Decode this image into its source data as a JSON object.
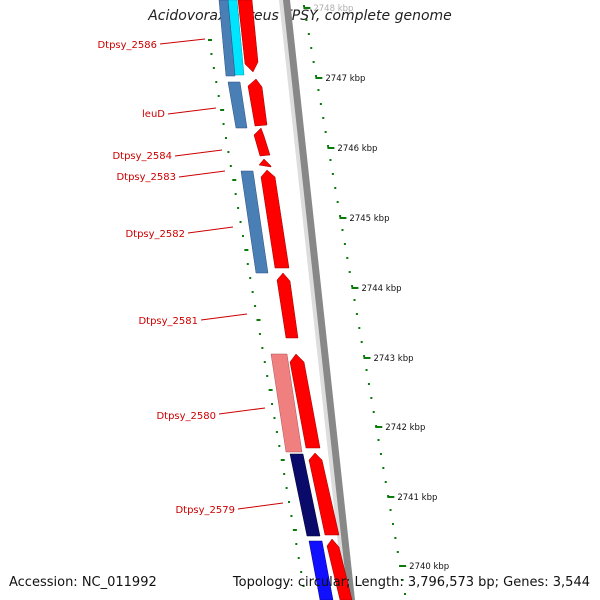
{
  "title": "Acidovorax ebreus TPSY, complete genome",
  "footer": {
    "accession": "Accession: NC_011992",
    "summary": "Topology: circular; Length: 3,796,573 bp; Genes: 3,544"
  },
  "ticks": [
    {
      "label": "2748 kbp",
      "faded": true
    },
    {
      "label": "2747 kbp"
    },
    {
      "label": "2746 kbp"
    },
    {
      "label": "2745 kbp"
    },
    {
      "label": "2744 kbp"
    },
    {
      "label": "2743 kbp"
    },
    {
      "label": "2742 kbp"
    },
    {
      "label": "2741 kbp"
    },
    {
      "label": "2740 kbp"
    }
  ],
  "gene_labels": [
    {
      "name": "Dtpsy_2586"
    },
    {
      "name": "leuD"
    },
    {
      "name": "Dtpsy_2584"
    },
    {
      "name": "Dtpsy_2583"
    },
    {
      "name": "Dtpsy_2582"
    },
    {
      "name": "Dtpsy_2581"
    },
    {
      "name": "Dtpsy_2580"
    },
    {
      "name": "Dtpsy_2579"
    }
  ],
  "colors": {
    "forward_strand": "#ff0000",
    "reverse_cyan": "#00e5ff",
    "reverse_steelblue": "#4a7fb5",
    "reverse_pink": "#f08080",
    "reverse_navy": "#0a0a6a",
    "reverse_blue": "#1010ff",
    "backbone": "#777777",
    "tick": "#0a7a0a",
    "label": "#cc0000"
  }
}
